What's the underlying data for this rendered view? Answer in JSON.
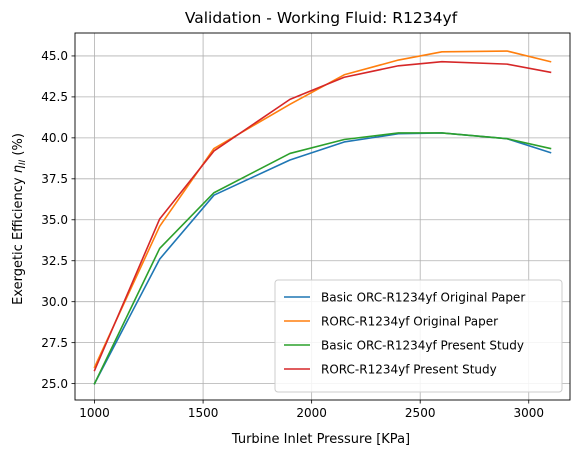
{
  "chart_data": {
    "type": "line",
    "title": "Validation - Working Fluid: R1234yf",
    "xlabel": "Turbine Inlet Pressure [KPa]",
    "ylabel_prefix": "Exergetic Efficiency ",
    "ylabel_symbol": "η",
    "ylabel_sub": "II",
    "ylabel_suffix": " (%)",
    "xlim": [
      910,
      3190
    ],
    "ylim": [
      24.0,
      46.4
    ],
    "xticks": [
      1000,
      1500,
      2000,
      2500,
      3000
    ],
    "yticks": [
      25.0,
      27.5,
      30.0,
      32.5,
      35.0,
      37.5,
      40.0,
      42.5,
      45.0
    ],
    "xtick_labels": [
      "1000",
      "1500",
      "2000",
      "2500",
      "3000"
    ],
    "ytick_labels": [
      "25.0",
      "27.5",
      "30.0",
      "32.5",
      "35.0",
      "37.5",
      "40.0",
      "42.5",
      "45.0"
    ],
    "grid": true,
    "legend_position": "lower-right",
    "series": [
      {
        "name": "Basic ORC-R1234yf Original Paper",
        "color": "#1f77b4",
        "x": [
          1000,
          1300,
          1550,
          1900,
          2150,
          2400,
          2600,
          2900,
          3100
        ],
        "y": [
          25.0,
          32.6,
          36.5,
          38.65,
          39.75,
          40.25,
          40.3,
          39.95,
          39.1
        ]
      },
      {
        "name": "RORC-R1234yf Original Paper",
        "color": "#ff7f0e",
        "x": [
          1000,
          1300,
          1550,
          1900,
          2150,
          2400,
          2600,
          2900,
          3100
        ],
        "y": [
          26.0,
          34.6,
          39.35,
          42.05,
          43.85,
          44.75,
          45.25,
          45.3,
          44.65
        ]
      },
      {
        "name": "Basic ORC-R1234yf Present Study",
        "color": "#2ca02c",
        "x": [
          1000,
          1300,
          1550,
          1900,
          2150,
          2400,
          2600,
          2900,
          3100
        ],
        "y": [
          25.0,
          33.25,
          36.65,
          39.05,
          39.9,
          40.3,
          40.3,
          39.95,
          39.35
        ]
      },
      {
        "name": "RORC-R1234yf Present Study",
        "color": "#d62728",
        "x": [
          1000,
          1300,
          1550,
          1900,
          2150,
          2400,
          2600,
          2900,
          3100
        ],
        "y": [
          25.8,
          35.05,
          39.2,
          42.35,
          43.7,
          44.4,
          44.65,
          44.5,
          44.0
        ]
      }
    ]
  }
}
